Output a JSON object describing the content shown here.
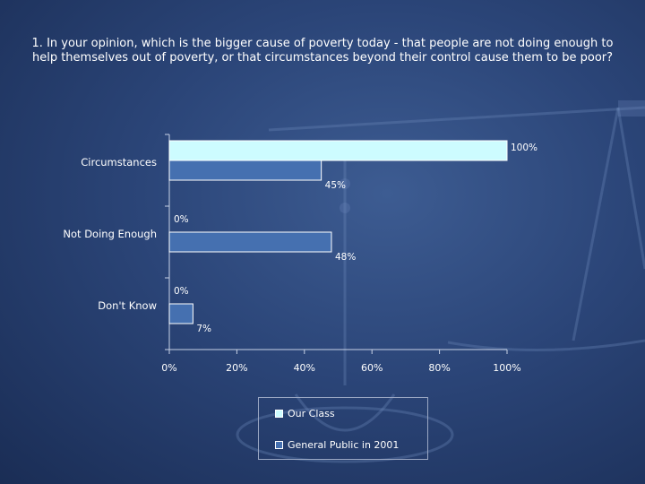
{
  "colors": {
    "our_class": "#cdfcff",
    "general_public": "#4570b0",
    "bar_stroke": "#ffffff",
    "axis": "#c8d2e6"
  },
  "chart_data": {
    "type": "bar",
    "orientation": "horizontal",
    "title": "1. In your opinion, which is the bigger cause of poverty today - that people are not doing enough to help themselves out of poverty, or that circumstances beyond their control cause them to be poor?",
    "categories": [
      "Circumstances",
      "Not Doing Enough",
      "Don't Know"
    ],
    "series": [
      {
        "name": "Our Class",
        "values": [
          100,
          0,
          0
        ],
        "labels": [
          "100%",
          "0%",
          "0%"
        ]
      },
      {
        "name": "General Public in 2001",
        "values": [
          45,
          48,
          7
        ],
        "labels": [
          "45%",
          "48%",
          "7%"
        ]
      }
    ],
    "xlim": [
      0,
      100
    ],
    "xticks": [
      0,
      20,
      40,
      60,
      80,
      100
    ],
    "xtick_labels": [
      "0%",
      "20%",
      "40%",
      "60%",
      "80%",
      "100%"
    ],
    "grid": false,
    "legend_position": "bottom-center"
  }
}
